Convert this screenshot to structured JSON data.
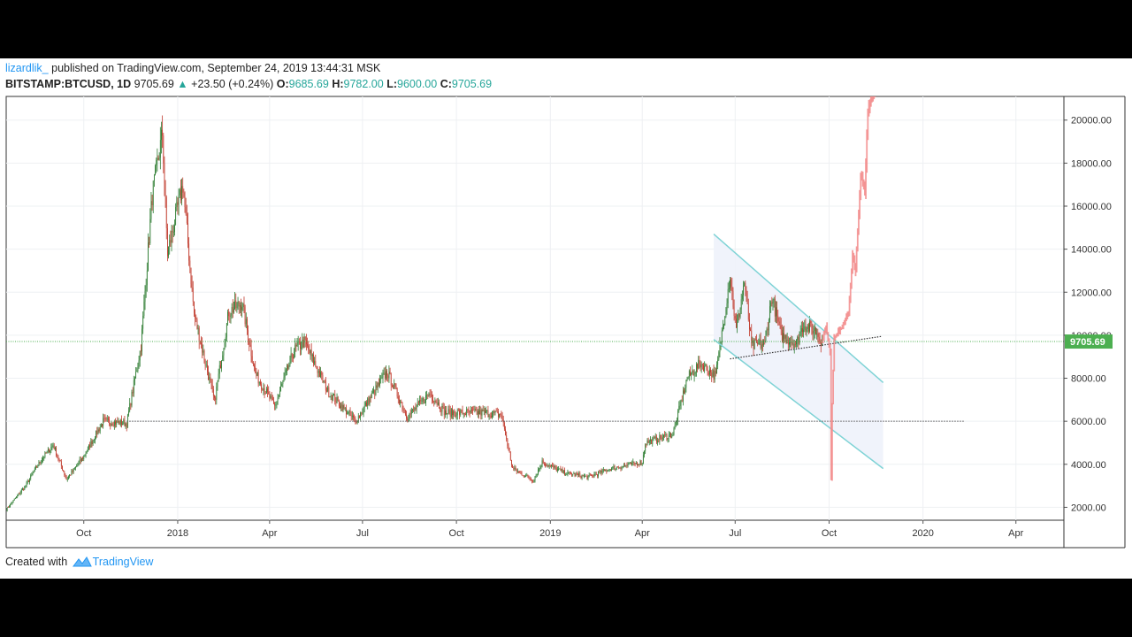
{
  "header": {
    "author": "lizardlik_",
    "published_text": "published on TradingView.com, September 24, 2019 13:44:31 MSK",
    "symbol": "BITSTAMP:BTCUSD, 1D",
    "last": "9705.69",
    "change": "+23.50 (+0.24%)",
    "o_label": "O:",
    "o_value": "9685.69",
    "h_label": "H:",
    "h_value": "9782.00",
    "l_label": "L:",
    "l_value": "9600.00",
    "c_label": "C:",
    "c_value": "9705.69"
  },
  "footer": {
    "created_with": "Created with",
    "brand": "TradingView"
  },
  "colors": {
    "up": "#26a69a",
    "down": "#ef5350",
    "candle_up": "#2e7d32",
    "candle_down": "#c0392b",
    "projection": "#f28b8b",
    "channel": "#7fd3d6",
    "channel_fill": "#eef2fb",
    "price_line": "#4caf50",
    "grid": "#eef0f3",
    "accent": "#2196f3"
  },
  "chart_data": {
    "type": "candlestick",
    "interval": "1D",
    "ylim": [
      1400,
      21100
    ],
    "xlim": [
      "2017-07-17",
      "2020-05-18"
    ],
    "y_ticks": [
      "2000.00",
      "4000.00",
      "6000.00",
      "8000.00",
      "10000.00",
      "12000.00",
      "14000.00",
      "16000.00",
      "18000.00",
      "20000.00"
    ],
    "x_ticks": [
      {
        "date": "2017-10-01",
        "label": "Oct"
      },
      {
        "date": "2018-01-01",
        "label": "2018"
      },
      {
        "date": "2018-04-01",
        "label": "Apr"
      },
      {
        "date": "2018-07-01",
        "label": "Jul"
      },
      {
        "date": "2018-10-01",
        "label": "Oct"
      },
      {
        "date": "2019-01-01",
        "label": "2019"
      },
      {
        "date": "2019-04-01",
        "label": "Apr"
      },
      {
        "date": "2019-07-01",
        "label": "Jul"
      },
      {
        "date": "2019-10-01",
        "label": "Oct"
      },
      {
        "date": "2020-01-01",
        "label": "2020"
      },
      {
        "date": "2020-04-01",
        "label": "Apr"
      }
    ],
    "grid": true,
    "price_series": {
      "name": "BITSTAMP:BTCUSD",
      "points": [
        [
          "2017-07-17",
          1900
        ],
        [
          "2017-08-05",
          3000
        ],
        [
          "2017-08-20",
          4200
        ],
        [
          "2017-09-01",
          4900
        ],
        [
          "2017-09-14",
          3300
        ],
        [
          "2017-09-30",
          4300
        ],
        [
          "2017-10-20",
          6000
        ],
        [
          "2017-11-12",
          5900
        ],
        [
          "2017-11-26",
          9500
        ],
        [
          "2017-12-07",
          16500
        ],
        [
          "2017-12-17",
          19400
        ],
        [
          "2017-12-22",
          13800
        ],
        [
          "2018-01-06",
          17000
        ],
        [
          "2018-01-17",
          11000
        ],
        [
          "2018-02-06",
          6900
        ],
        [
          "2018-02-20",
          11100
        ],
        [
          "2018-03-05",
          11500
        ],
        [
          "2018-03-18",
          8200
        ],
        [
          "2018-04-06",
          6700
        ],
        [
          "2018-04-25",
          9300
        ],
        [
          "2018-05-05",
          9700
        ],
        [
          "2018-05-28",
          7400
        ],
        [
          "2018-06-24",
          6000
        ],
        [
          "2018-07-25",
          8300
        ],
        [
          "2018-08-14",
          6200
        ],
        [
          "2018-09-05",
          7300
        ],
        [
          "2018-09-20",
          6400
        ],
        [
          "2018-10-28",
          6400
        ],
        [
          "2018-11-14",
          6300
        ],
        [
          "2018-11-25",
          3800
        ],
        [
          "2018-12-15",
          3250
        ],
        [
          "2018-12-24",
          4100
        ],
        [
          "2019-01-15",
          3600
        ],
        [
          "2019-02-07",
          3400
        ],
        [
          "2019-03-01",
          3800
        ],
        [
          "2019-04-01",
          4100
        ],
        [
          "2019-04-04",
          5000
        ],
        [
          "2019-05-01",
          5400
        ],
        [
          "2019-05-15",
          8000
        ],
        [
          "2019-05-28",
          8700
        ],
        [
          "2019-06-12",
          8100
        ],
        [
          "2019-06-26",
          12800
        ],
        [
          "2019-07-02",
          10200
        ],
        [
          "2019-07-10",
          12500
        ],
        [
          "2019-07-17",
          9500
        ],
        [
          "2019-07-30",
          9600
        ],
        [
          "2019-08-06",
          11800
        ],
        [
          "2019-08-15",
          10000
        ],
        [
          "2019-08-30",
          9600
        ],
        [
          "2019-09-06",
          10500
        ],
        [
          "2019-09-18",
          10200
        ],
        [
          "2019-09-24",
          9705.69
        ]
      ]
    },
    "projection": {
      "points": [
        [
          "2019-09-24",
          9700
        ],
        [
          "2019-09-28",
          10400
        ],
        [
          "2019-10-02",
          9200
        ],
        [
          "2019-10-03",
          3300
        ],
        [
          "2019-10-04",
          6800
        ],
        [
          "2019-10-06",
          9900
        ],
        [
          "2019-10-14",
          10400
        ],
        [
          "2019-10-20",
          11000
        ],
        [
          "2019-10-24",
          13800
        ],
        [
          "2019-10-27",
          13000
        ],
        [
          "2019-11-01",
          17500
        ],
        [
          "2019-11-05",
          16600
        ],
        [
          "2019-11-08",
          20500
        ],
        [
          "2019-11-12",
          21000
        ],
        [
          "2019-11-16",
          22000
        ]
      ]
    },
    "annotations": {
      "channel_upper": [
        [
          "2019-06-10",
          14700
        ],
        [
          "2019-11-23",
          7800
        ]
      ],
      "channel_lower": [
        [
          "2019-06-10",
          9800
        ],
        [
          "2019-11-23",
          3800
        ]
      ],
      "trendline": [
        [
          "2019-06-26",
          8900
        ],
        [
          "2019-11-22",
          9950
        ]
      ],
      "support": [
        [
          "2017-11-12",
          6000
        ],
        [
          "2020-02-10",
          6000
        ]
      ],
      "last_price": 9705.69,
      "last_price_label": "9705.69"
    }
  }
}
